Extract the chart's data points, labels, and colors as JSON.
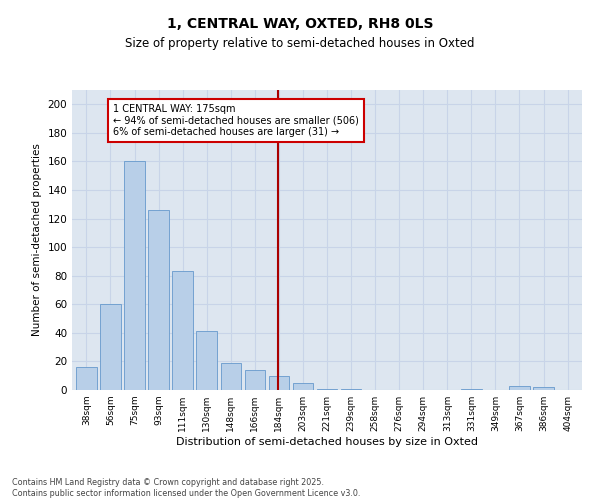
{
  "title_line1": "1, CENTRAL WAY, OXTED, RH8 0LS",
  "title_line2": "Size of property relative to semi-detached houses in Oxted",
  "xlabel": "Distribution of semi-detached houses by size in Oxted",
  "ylabel": "Number of semi-detached properties",
  "categories": [
    "38sqm",
    "56sqm",
    "75sqm",
    "93sqm",
    "111sqm",
    "130sqm",
    "148sqm",
    "166sqm",
    "184sqm",
    "203sqm",
    "221sqm",
    "239sqm",
    "258sqm",
    "276sqm",
    "294sqm",
    "313sqm",
    "331sqm",
    "349sqm",
    "367sqm",
    "386sqm",
    "404sqm"
  ],
  "values": [
    16,
    60,
    160,
    126,
    83,
    41,
    19,
    14,
    10,
    5,
    1,
    1,
    0,
    0,
    0,
    0,
    1,
    0,
    3,
    2,
    0
  ],
  "bar_color": "#b8cfe8",
  "bar_edge_color": "#6699cc",
  "grid_color": "#c8d4e8",
  "bg_color": "#dde6f0",
  "vline_color": "#aa0000",
  "annotation_text": "1 CENTRAL WAY: 175sqm\n← 94% of semi-detached houses are smaller (506)\n6% of semi-detached houses are larger (31) →",
  "annotation_box_color": "#cc0000",
  "footer_text": "Contains HM Land Registry data © Crown copyright and database right 2025.\nContains public sector information licensed under the Open Government Licence v3.0.",
  "ylim": [
    0,
    210
  ],
  "yticks": [
    0,
    20,
    40,
    60,
    80,
    100,
    120,
    140,
    160,
    180,
    200
  ]
}
